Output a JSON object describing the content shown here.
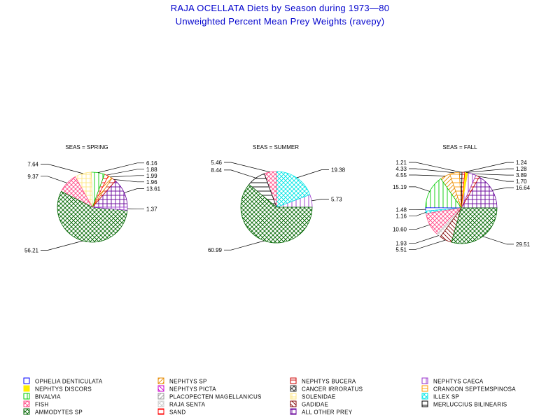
{
  "title": "RAJA OCELLATA Diets by Season during 1973—80",
  "subtitle": "Unweighted Percent Mean Prey Weights (ravepy)",
  "colors": {
    "ophelia_denticulata": "#0000ff",
    "nephtys_sp": "#e68a00",
    "nephtys_bucera": "#cc0000",
    "nephtys_caeca": "#9933cc",
    "nephtys_discors": "#ffee00",
    "nephtys_picta": "#cc00cc",
    "cancer_irroratus": "#333333",
    "crangon_septemspinosa": "#ff9900",
    "bivalvia": "#00cc00",
    "placopecten_magellanicus": "#999999",
    "solenidae": "#ffe680",
    "illex_sp": "#00e5e5",
    "fish": "#ff4d88",
    "raja_senta": "#cccccc",
    "gadidae": "#800000",
    "merluccius_bilinearis": "#000000",
    "ammodytes_sp": "#006600",
    "sand": "#ff0000",
    "all_other_prey": "#660099"
  },
  "legend": [
    {
      "key": "ophelia_denticulata",
      "label": "OPHELIA DENTICULATA"
    },
    {
      "key": "nephtys_sp",
      "label": "NEPHTYS SP"
    },
    {
      "key": "nephtys_bucera",
      "label": "NEPHTYS BUCERA"
    },
    {
      "key": "nephtys_caeca",
      "label": "NEPHTYS CAECA"
    },
    {
      "key": "nephtys_discors",
      "label": "NEPHTYS DISCORS"
    },
    {
      "key": "nephtys_picta",
      "label": "NEPHTYS PICTA"
    },
    {
      "key": "cancer_irroratus",
      "label": "CANCER IRRORATUS"
    },
    {
      "key": "crangon_septemspinosa",
      "label": "CRANGON SEPTEMSPINOSA"
    },
    {
      "key": "bivalvia",
      "label": "BIVALVIA"
    },
    {
      "key": "placopecten_magellanicus",
      "label": "PLACOPECTEN MAGELLANICUS"
    },
    {
      "key": "solenidae",
      "label": "SOLENIDAE"
    },
    {
      "key": "illex_sp",
      "label": "ILLEX SP"
    },
    {
      "key": "fish",
      "label": "FISH"
    },
    {
      "key": "raja_senta",
      "label": "RAJA SENTA"
    },
    {
      "key": "gadidae",
      "label": "GADIDAE"
    },
    {
      "key": "merluccius_bilinearis",
      "label": "MERLUCCIUS BILINEARIS"
    },
    {
      "key": "ammodytes_sp",
      "label": "AMMODYTES SP"
    },
    {
      "key": "sand",
      "label": "SAND"
    },
    {
      "key": "all_other_prey",
      "label": "ALL OTHER PREY"
    }
  ],
  "chart_data": [
    {
      "type": "pie",
      "title": "SEAS = SPRING",
      "slices": [
        {
          "key": "all_other_prey",
          "value": 13.61,
          "label": "13.61"
        },
        {
          "key": "nephtys_bucera",
          "value": 1.96,
          "label": "1.96"
        },
        {
          "key": "nephtys_sp",
          "value": 1.99,
          "label": "1.99"
        },
        {
          "key": "sand",
          "value": 1.88,
          "label": "1.88"
        },
        {
          "key": "bivalvia",
          "value": 6.16,
          "label": "6.16"
        },
        {
          "key": "solenidae",
          "value": 7.64,
          "label": "7.64"
        },
        {
          "key": "fish",
          "value": 9.37,
          "label": "9.37"
        },
        {
          "key": "ammodytes_sp",
          "value": 56.21,
          "label": "56.21"
        },
        {
          "key": "nephtys_caeca",
          "value": 1.37,
          "label": "1.37"
        }
      ]
    },
    {
      "type": "pie",
      "title": "SEAS = SUMMER",
      "slices": [
        {
          "key": "nephtys_caeca",
          "value": 5.73,
          "label": "5.73"
        },
        {
          "key": "illex_sp",
          "value": 19.38,
          "label": "19.38"
        },
        {
          "key": "fish",
          "value": 5.46,
          "label": "5.46"
        },
        {
          "key": "merluccius_bilinearis",
          "value": 8.44,
          "label": "8.44"
        },
        {
          "key": "ammodytes_sp",
          "value": 60.99,
          "label": "60.99"
        }
      ]
    },
    {
      "type": "pie",
      "title": "SEAS = FALL",
      "slices": [
        {
          "key": "all_other_prey",
          "value": 16.64,
          "label": "16.64"
        },
        {
          "key": "nephtys_bucera",
          "value": 1.7,
          "label": "1.70"
        },
        {
          "key": "nephtys_caeca",
          "value": 3.89,
          "label": "3.89"
        },
        {
          "key": "nephtys_discors",
          "value": 1.28,
          "label": "1.28"
        },
        {
          "key": "sand",
          "value": 1.24,
          "label": "1.24"
        },
        {
          "key": "merluccius_bilinearis",
          "value": 1.21,
          "label": "1.21"
        },
        {
          "key": "crangon_septemspinosa",
          "value": 4.33,
          "label": "4.33"
        },
        {
          "key": "nephtys_sp",
          "value": 4.55,
          "label": "4.55"
        },
        {
          "key": "bivalvia",
          "value": 15.19,
          "label": "15.19"
        },
        {
          "key": "ophelia_denticulata",
          "value": 1.48,
          "label": "1.48"
        },
        {
          "key": "illex_sp",
          "value": 1.16,
          "label": "1.16"
        },
        {
          "key": "fish",
          "value": 10.6,
          "label": "10.60"
        },
        {
          "key": "raja_senta",
          "value": 1.93,
          "label": "1.93"
        },
        {
          "key": "gadidae",
          "value": 5.51,
          "label": "5.51"
        },
        {
          "key": "ammodytes_sp",
          "value": 29.51,
          "label": "29.51"
        }
      ]
    }
  ]
}
